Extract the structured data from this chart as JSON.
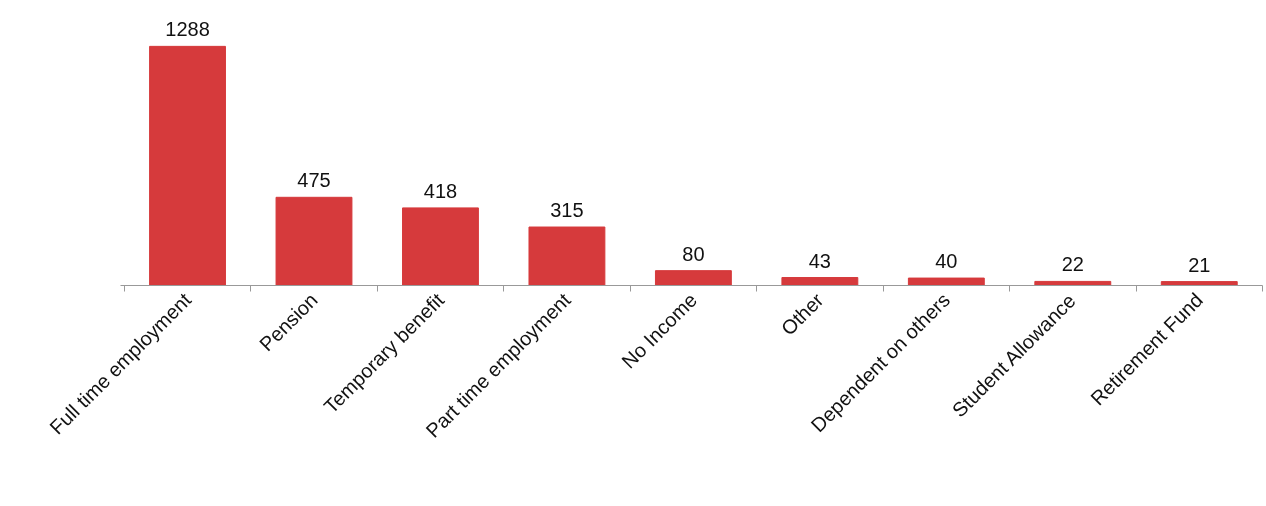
{
  "chart_data": {
    "type": "bar",
    "categories": [
      "Full time employment",
      "Pension",
      "Temporary benefit",
      "Part time employment",
      "No Income",
      "Other",
      "Dependent on others",
      "Student Allowance",
      "Retirement Fund"
    ],
    "values": [
      1288,
      475,
      418,
      315,
      80,
      43,
      40,
      22,
      21
    ],
    "color": "#d63a3c",
    "data_labels": true,
    "grid": false
  }
}
